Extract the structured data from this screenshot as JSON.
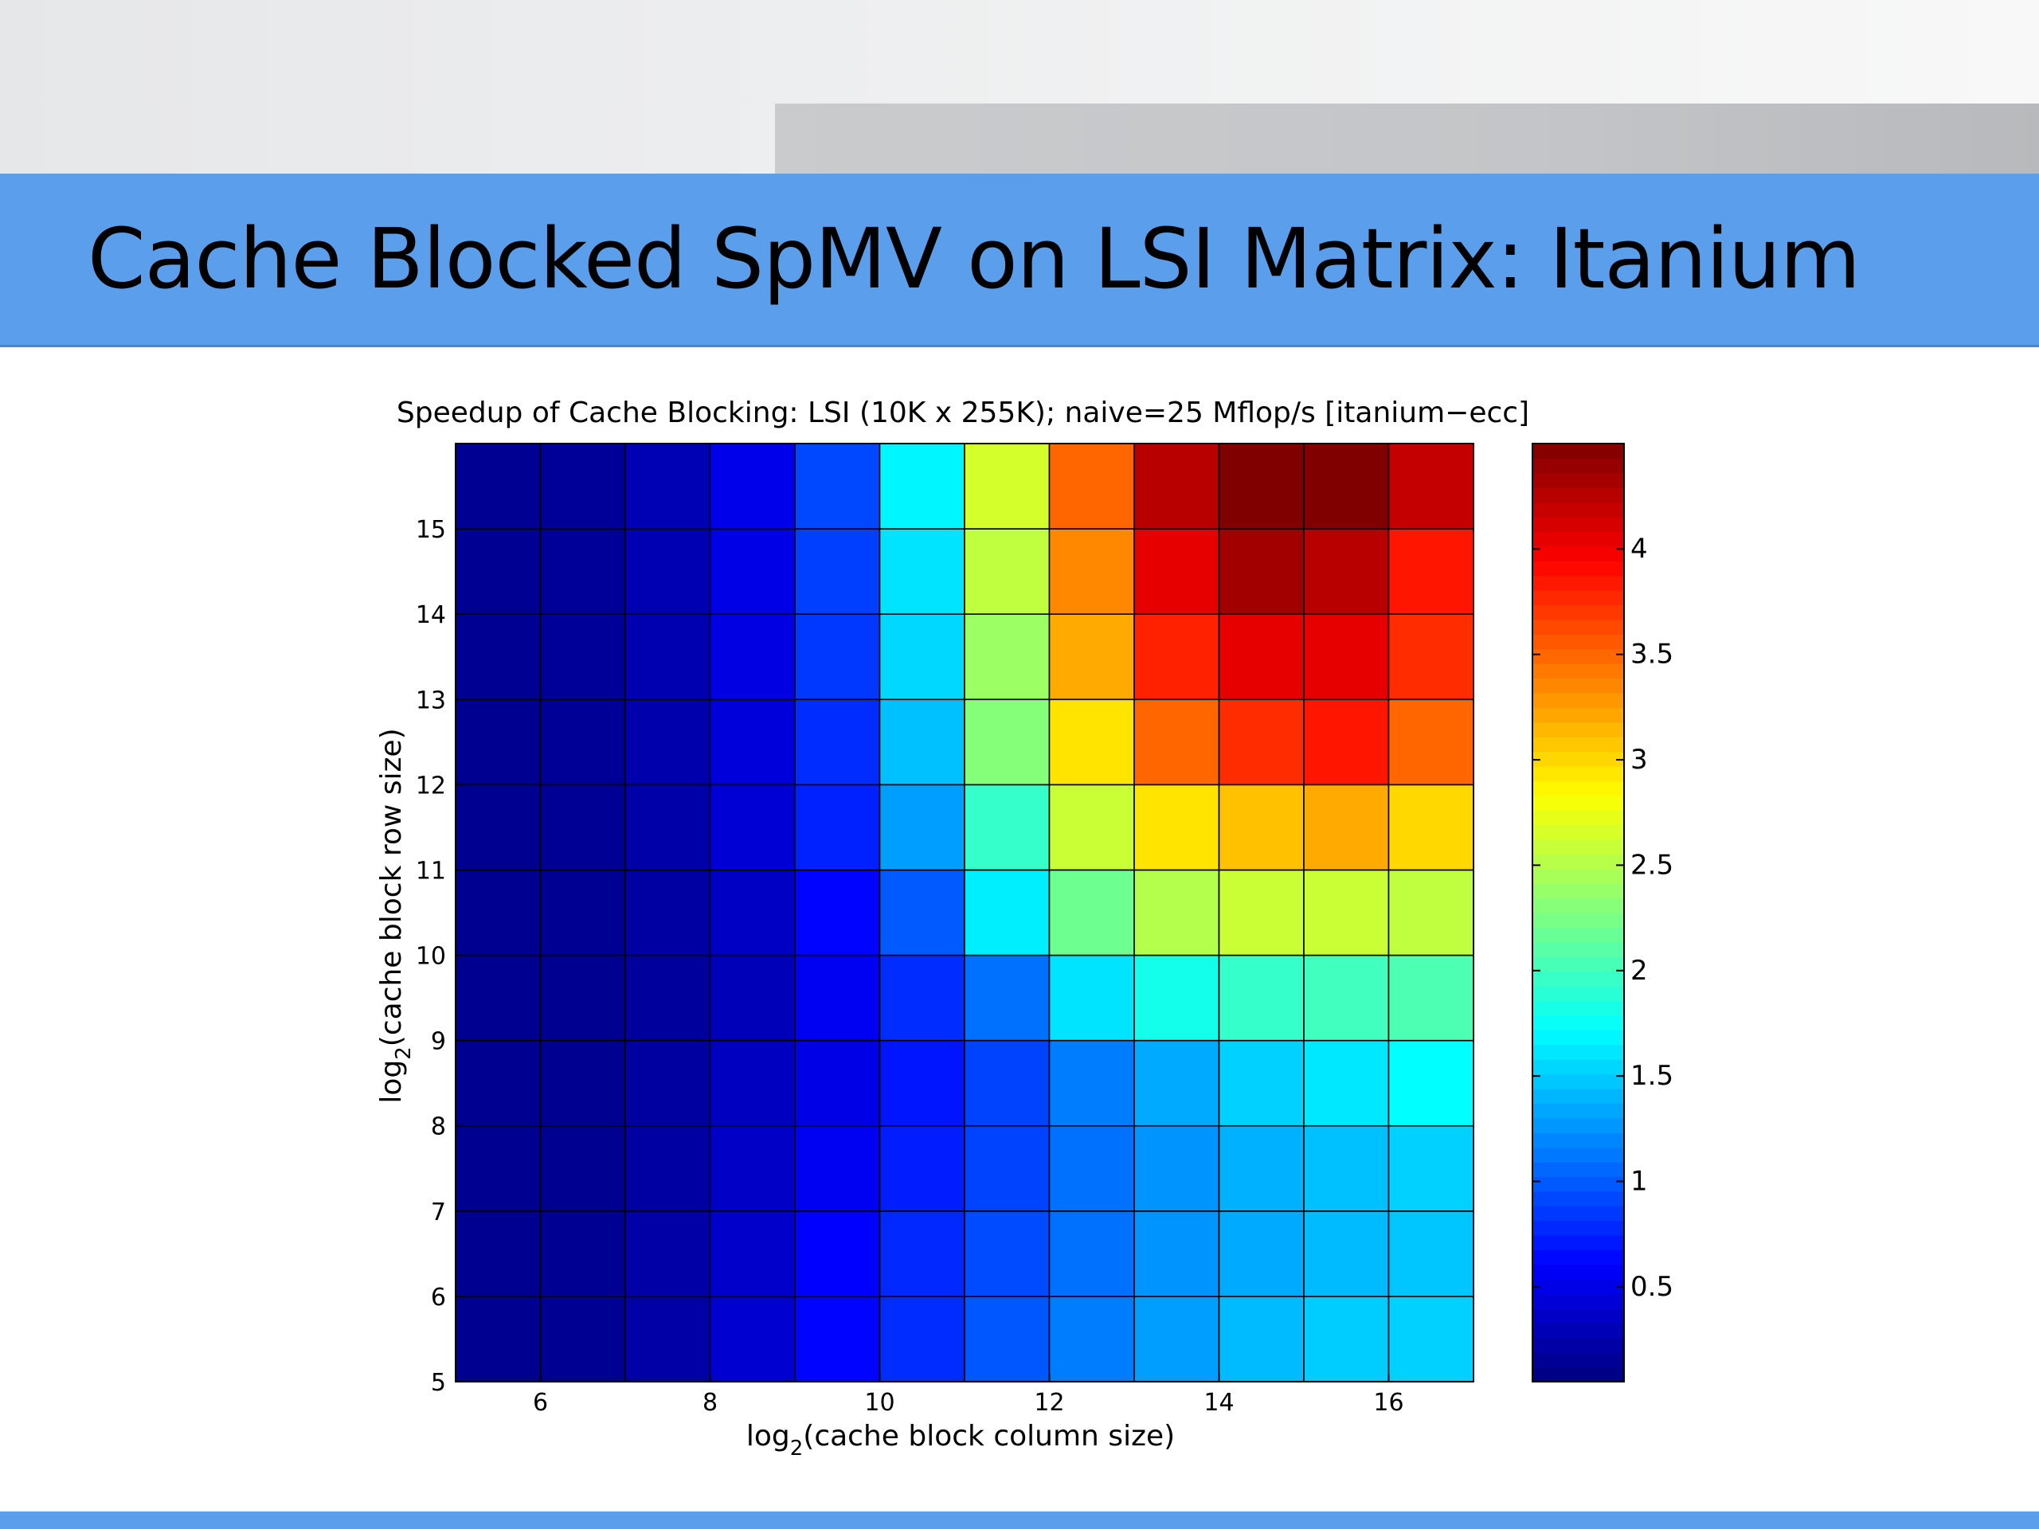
{
  "slide": {
    "title": "Cache Blocked SpMV on LSI Matrix: Itanium"
  },
  "colors": {
    "title_bar": "#5a9eec",
    "header_band": "#e6e7e9",
    "header_accent": "#c3c5c8",
    "cell_border": "#000000"
  },
  "chart_data": {
    "type": "heatmap",
    "title": "Speedup of Cache Blocking: LSI (10K x 255K); naive=25 Mflop/s [itanium−ecc]",
    "xlabel": {
      "prefix": "log",
      "subscript": "2",
      "suffix": "(cache block column size)"
    },
    "ylabel": {
      "prefix": "log",
      "subscript": "2",
      "suffix": "(cache block row size)"
    },
    "x": [
      5,
      6,
      7,
      8,
      9,
      10,
      11,
      12,
      13,
      14,
      15,
      16
    ],
    "y": [
      5,
      6,
      7,
      8,
      9,
      10,
      11,
      12,
      13,
      14,
      15
    ],
    "xlim": [
      5,
      17
    ],
    "ylim": [
      5,
      16
    ],
    "xticks": [
      "6",
      "8",
      "10",
      "12",
      "14",
      "16"
    ],
    "yticks": [
      "5",
      "6",
      "7",
      "8",
      "9",
      "10",
      "11",
      "12",
      "13",
      "14",
      "15"
    ],
    "colorscale": "jet",
    "zlim": [
      0.05,
      4.5
    ],
    "colorbar_ticks": [
      "0.5",
      "1",
      "1.5",
      "2",
      "2.5",
      "3",
      "3.5",
      "4"
    ],
    "grid": true,
    "values": [
      [
        0.12,
        0.13,
        0.22,
        0.4,
        0.62,
        0.8,
        0.98,
        1.15,
        1.3,
        1.42,
        1.5,
        1.52
      ],
      [
        0.12,
        0.13,
        0.22,
        0.38,
        0.6,
        0.78,
        0.93,
        1.1,
        1.25,
        1.35,
        1.42,
        1.47
      ],
      [
        0.12,
        0.12,
        0.2,
        0.36,
        0.55,
        0.73,
        0.9,
        1.1,
        1.25,
        1.38,
        1.45,
        1.52
      ],
      [
        0.12,
        0.12,
        0.19,
        0.33,
        0.5,
        0.7,
        0.9,
        1.15,
        1.35,
        1.52,
        1.62,
        1.72
      ],
      [
        0.12,
        0.12,
        0.18,
        0.3,
        0.55,
        0.8,
        1.1,
        1.6,
        1.8,
        1.95,
        2.0,
        2.05
      ],
      [
        0.12,
        0.13,
        0.2,
        0.35,
        0.62,
        1.0,
        1.65,
        2.2,
        2.5,
        2.6,
        2.6,
        2.55
      ],
      [
        0.12,
        0.14,
        0.23,
        0.42,
        0.75,
        1.3,
        1.95,
        2.6,
        2.95,
        3.1,
        3.2,
        3.0
      ],
      [
        0.12,
        0.15,
        0.25,
        0.45,
        0.8,
        1.45,
        2.3,
        2.95,
        3.5,
        3.75,
        3.85,
        3.5
      ],
      [
        0.13,
        0.16,
        0.26,
        0.48,
        0.85,
        1.55,
        2.4,
        3.2,
        3.8,
        4.05,
        4.05,
        3.75
      ],
      [
        0.13,
        0.16,
        0.27,
        0.5,
        0.88,
        1.6,
        2.55,
        3.35,
        4.05,
        4.35,
        4.25,
        3.85
      ],
      [
        0.13,
        0.16,
        0.28,
        0.52,
        0.92,
        1.68,
        2.65,
        3.5,
        4.25,
        4.8,
        4.8,
        4.2
      ]
    ]
  }
}
